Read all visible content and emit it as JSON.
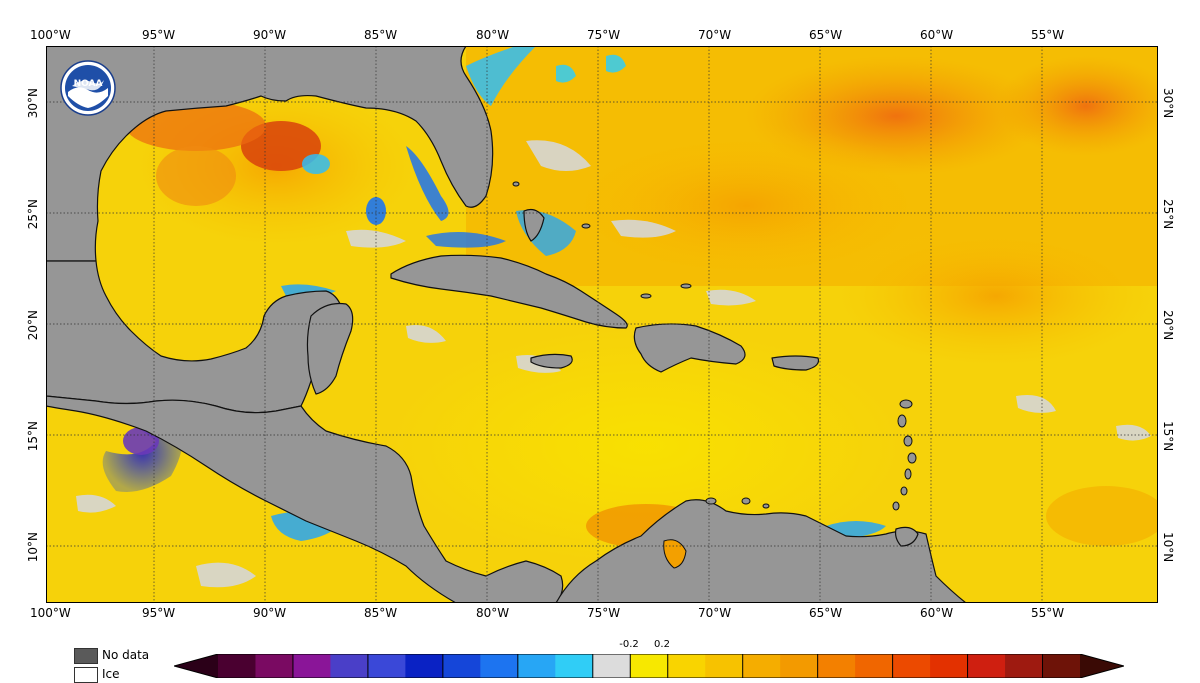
{
  "map": {
    "lon_labels": [
      "100°W",
      "95°W",
      "90°W",
      "85°W",
      "80°W",
      "75°W",
      "70°W",
      "65°W",
      "60°W",
      "55°W"
    ],
    "lat_labels": [
      "30°N",
      "25°N",
      "20°N",
      "15°N",
      "10°N"
    ],
    "logo_text": "NOAA"
  },
  "legend": {
    "no_data_label": "No data",
    "ice_label": "Ice"
  },
  "colorbar": {
    "threshold_labels": [
      "-0.2",
      "0.2"
    ],
    "colors": [
      "#4a0030",
      "#7a0a62",
      "#8a1598",
      "#4a3fc8",
      "#3a48d8",
      "#0a22c4",
      "#1546d9",
      "#1d74f0",
      "#27a6f5",
      "#30cdf6",
      "#dcdcdc",
      "#f7e800",
      "#f9d400",
      "#f7c200",
      "#f5ad00",
      "#f39a00",
      "#f38000",
      "#f06600",
      "#ec4a00",
      "#e33100",
      "#cf1f10",
      "#9e1a10",
      "#6e1308"
    ],
    "neg_end_color": "#2b0018",
    "pos_end_color": "#3a0a05"
  },
  "colors": {
    "land": "#969696",
    "ocean_base": "#f6d20a",
    "coast": "#111111"
  }
}
